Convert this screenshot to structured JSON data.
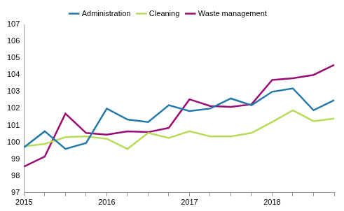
{
  "chart_data": {
    "type": "line",
    "categories": [
      "2015",
      null,
      null,
      null,
      "2016",
      null,
      null,
      null,
      "2017",
      null,
      null,
      null,
      "2018",
      null,
      null,
      null
    ],
    "series": [
      {
        "name": "Administration",
        "color": "#2479a8",
        "values": [
          99.7,
          100.65,
          99.6,
          99.95,
          102.0,
          101.35,
          101.2,
          102.2,
          101.85,
          102.0,
          102.6,
          102.2,
          103.0,
          103.2,
          101.9,
          102.5
        ]
      },
      {
        "name": "Cleaning",
        "color": "#b7dc5a",
        "values": [
          99.75,
          99.9,
          100.3,
          100.35,
          100.2,
          99.6,
          100.55,
          100.25,
          100.65,
          100.35,
          100.35,
          100.55,
          101.2,
          101.9,
          101.25,
          101.4
        ]
      },
      {
        "name": "Waste management",
        "color": "#990d74",
        "values": [
          98.55,
          99.15,
          101.7,
          100.55,
          100.45,
          100.65,
          100.6,
          100.85,
          102.55,
          102.15,
          102.1,
          102.25,
          103.7,
          103.8,
          104.0,
          104.6
        ]
      }
    ],
    "ylim": [
      97,
      107
    ],
    "yticks": [
      97,
      98,
      99,
      100,
      101,
      102,
      103,
      104,
      105,
      106,
      107
    ],
    "grid": false,
    "legend": "top"
  }
}
